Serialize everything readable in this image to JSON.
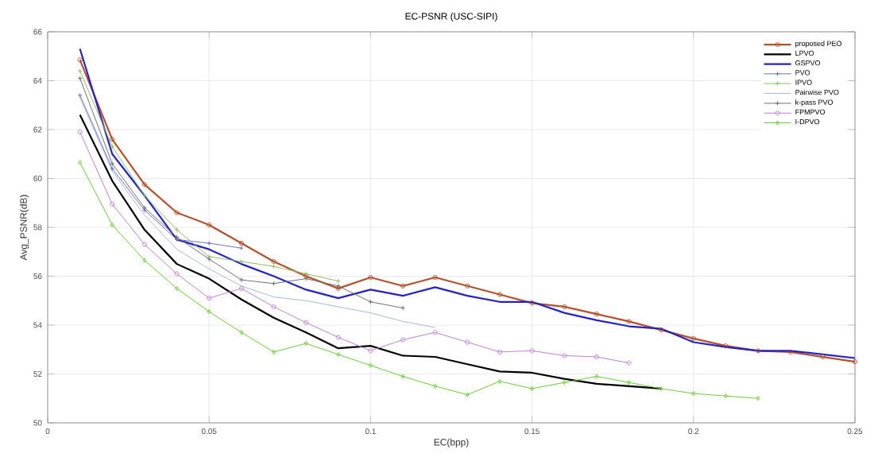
{
  "chart_data": {
    "type": "line",
    "title": "EC-PSNR (USC-SIPI)",
    "xlabel": "EC(bpp)",
    "ylabel": "Avg_PSNR(dB)",
    "x": [
      0.01,
      0.02,
      0.03,
      0.04,
      0.05,
      0.06,
      0.07,
      0.08,
      0.09,
      0.1,
      0.11,
      0.12,
      0.13,
      0.14,
      0.15,
      0.16,
      0.17,
      0.18,
      0.19,
      0.2,
      0.21,
      0.22,
      0.23,
      0.24,
      0.25
    ],
    "xlim": [
      0,
      0.25
    ],
    "xticks": [
      0,
      0.05,
      0.1,
      0.15,
      0.2,
      0.25
    ],
    "ylim": [
      50,
      66
    ],
    "yticks": [
      50,
      52,
      54,
      56,
      58,
      60,
      62,
      64,
      66
    ],
    "grid": true,
    "legend": "top right",
    "series": [
      {
        "name": "proposed PEO",
        "color": "#b5502a",
        "marker": "circle",
        "values": [
          64.85,
          61.6,
          59.75,
          58.6,
          58.1,
          57.35,
          56.6,
          56.0,
          55.5,
          55.95,
          55.6,
          55.95,
          55.6,
          55.25,
          54.9,
          54.75,
          54.45,
          54.15,
          53.8,
          53.45,
          53.15,
          52.95,
          52.9,
          52.7,
          52.5
        ]
      },
      {
        "name": "LPVO",
        "color": "#000000",
        "marker": "none",
        "values": [
          62.6,
          59.9,
          57.9,
          56.5,
          55.9,
          55.05,
          54.3,
          53.7,
          53.05,
          53.15,
          52.75,
          52.7,
          52.4,
          52.1,
          52.05,
          51.8,
          51.6,
          51.5,
          51.4,
          null,
          null,
          null,
          null,
          null,
          null
        ]
      },
      {
        "name": "GSPVO",
        "color": "#2222c8",
        "marker": "none",
        "values": [
          65.3,
          61.0,
          59.3,
          57.5,
          57.1,
          56.5,
          56.0,
          55.45,
          55.1,
          55.45,
          55.2,
          55.55,
          55.2,
          54.95,
          54.95,
          54.5,
          54.2,
          53.95,
          53.85,
          53.3,
          53.1,
          52.95,
          52.95,
          52.8,
          52.65
        ]
      },
      {
        "name": "PVO",
        "color": "#7070c0",
        "marker": "cross",
        "values": [
          63.4,
          60.4,
          58.7,
          57.5,
          57.35,
          57.15,
          null,
          null,
          null,
          null,
          null,
          null,
          null,
          null,
          null,
          null,
          null,
          null,
          null,
          null,
          null,
          null,
          null,
          null,
          null
        ]
      },
      {
        "name": "IPVO",
        "color": "#8cc060",
        "marker": "cross",
        "values": [
          64.4,
          61.3,
          59.3,
          57.9,
          56.8,
          56.6,
          56.4,
          56.1,
          55.8,
          null,
          null,
          null,
          null,
          null,
          null,
          null,
          null,
          null,
          null,
          null,
          null,
          null,
          null,
          null,
          null
        ]
      },
      {
        "name": "Pairwise PVO",
        "color": "#a8b8e0",
        "marker": "none",
        "values": [
          63.3,
          60.3,
          58.5,
          57.1,
          56.3,
          55.6,
          55.15,
          55.0,
          54.75,
          54.5,
          54.15,
          53.9,
          null,
          null,
          null,
          null,
          null,
          null,
          null,
          null,
          null,
          null,
          null,
          null,
          null
        ]
      },
      {
        "name": "k-pass PVO",
        "color": "#707070",
        "marker": "cross",
        "values": [
          64.1,
          60.6,
          58.8,
          57.6,
          56.7,
          55.85,
          55.7,
          55.9,
          55.6,
          54.95,
          54.7,
          null,
          null,
          null,
          null,
          null,
          null,
          null,
          null,
          null,
          null,
          null,
          null,
          null,
          null
        ]
      },
      {
        "name": "FPMPVO",
        "color": "#c080d8",
        "marker": "circle",
        "values": [
          61.9,
          58.95,
          57.3,
          56.1,
          55.1,
          55.5,
          54.75,
          54.1,
          53.5,
          52.95,
          53.4,
          53.7,
          53.3,
          52.9,
          52.95,
          52.75,
          52.7,
          52.45,
          null,
          null,
          null,
          null,
          null,
          null,
          null
        ]
      },
      {
        "name": "I-DPVO",
        "color": "#66cc33",
        "marker": "diamond",
        "values": [
          60.65,
          58.1,
          56.65,
          55.5,
          54.55,
          53.7,
          52.9,
          53.25,
          52.8,
          52.35,
          51.9,
          51.5,
          51.15,
          51.7,
          51.4,
          51.65,
          51.9,
          51.65,
          51.4,
          51.2,
          51.1,
          51.0,
          null,
          null,
          null
        ]
      }
    ]
  }
}
